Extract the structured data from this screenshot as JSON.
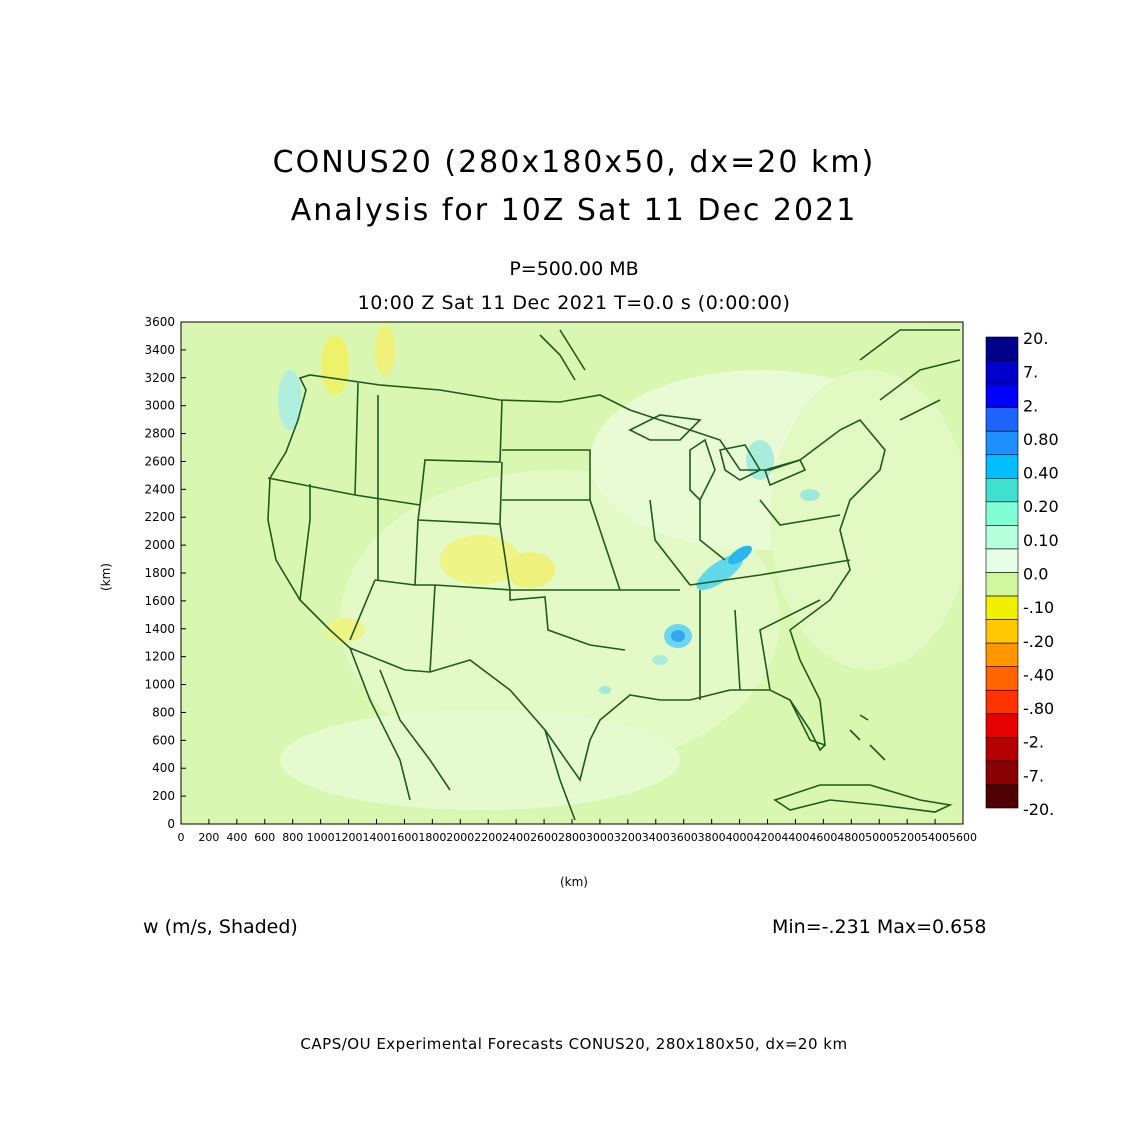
{
  "header": {
    "title": "CONUS20 (280x180x50, dx=20 km)",
    "subtitle": "Analysis for 10Z Sat 11 Dec 2021",
    "level": "P=500.00 MB",
    "valid_time": "10:00 Z Sat 11 Dec 2021    T=0.0 s (0:00:00)"
  },
  "axes": {
    "x_label": "(km)",
    "y_label": "(km)",
    "x_ticks": [
      "0",
      "200",
      "400",
      "600",
      "800",
      "1000",
      "1200",
      "1400",
      "1600",
      "1800",
      "2000",
      "2200",
      "2400",
      "2600",
      "2800",
      "3000",
      "3200",
      "3400",
      "3600",
      "3800",
      "4000",
      "4200",
      "4400",
      "4600",
      "4800",
      "5000",
      "5200",
      "5400",
      "5600"
    ],
    "y_ticks": [
      "0",
      "200",
      "400",
      "600",
      "800",
      "1000",
      "1200",
      "1400",
      "1600",
      "1800",
      "2000",
      "2200",
      "2400",
      "2600",
      "2800",
      "3000",
      "3200",
      "3400",
      "3600"
    ]
  },
  "colorbar": {
    "labels": [
      "20.",
      "7.",
      "2.",
      "0.80",
      "0.40",
      "0.20",
      "0.10",
      "0.0",
      "-.10",
      "-.20",
      "-.40",
      "-.80",
      "-2.",
      "-7.",
      "-20."
    ],
    "colors": [
      "#00008b",
      "#0000cd",
      "#0000ff",
      "#1e64ff",
      "#1e90ff",
      "#00bfff",
      "#40e0d0",
      "#7fffd4",
      "#b4ffdc",
      "#e6ffe6",
      "#d2f5a0",
      "#f0f000",
      "#ffc800",
      "#ff9600",
      "#ff6400",
      "#ff3200",
      "#e60000",
      "#b40000",
      "#8b0000",
      "#500000"
    ]
  },
  "field": {
    "variable_label": "w (m/s, Shaded)",
    "min_max": "Min=-.231  Max=0.658"
  },
  "footer": "CAPS/OU Experimental Forecasts  CONUS20, 280x180x50, dx=20 km",
  "map_colors": {
    "background_field": "#d9f7b0",
    "border_line": "#1e5a1e"
  }
}
